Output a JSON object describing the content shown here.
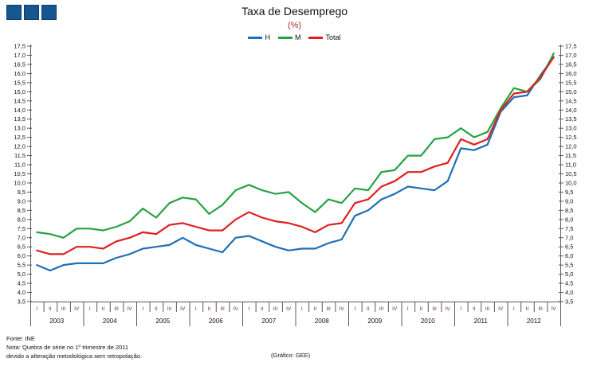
{
  "header": {
    "title": "Taxa de Desemprego",
    "subtitle": "(%)"
  },
  "logo": {
    "squares": 3,
    "color": "#18568F"
  },
  "footer": {
    "source": "Fonte: INE",
    "note_line1": "Nota: Quebra de série no 1º trimestre de 2011",
    "note_line2": "devido a alteração metodológica sem retropolação.",
    "credit": "(Gráfico: GEE)"
  },
  "chart_data": {
    "type": "line",
    "title": "Taxa de Desemprego",
    "subtitle": "(%)",
    "ylim": [
      3.5,
      17.5
    ],
    "ytick_step": 0.5,
    "grid": false,
    "legend_position": "top-center",
    "axis_color": "#595959",
    "quarter_label_color": "#69295E",
    "year_label_color": "#111111",
    "years": [
      2003,
      2004,
      2005,
      2006,
      2007,
      2008,
      2009,
      2010,
      2011,
      2012
    ],
    "quarter_labels": [
      "I",
      "II",
      "III",
      "IV"
    ],
    "x_unit": "quarters (I-IV) per year, 2003-2012",
    "series": [
      {
        "name": "H",
        "color": "#1F6FB5",
        "values": [
          5.5,
          5.2,
          5.5,
          5.6,
          5.6,
          5.6,
          5.9,
          6.1,
          6.4,
          6.5,
          6.6,
          7.0,
          6.6,
          6.4,
          6.2,
          7.0,
          7.1,
          6.8,
          6.5,
          6.3,
          6.4,
          6.4,
          6.7,
          6.9,
          8.2,
          8.5,
          9.1,
          9.4,
          9.8,
          9.7,
          9.6,
          10.1,
          11.9,
          11.8,
          12.1,
          13.9,
          14.7,
          14.8,
          15.9,
          16.9
        ]
      },
      {
        "name": "M",
        "color": "#27A243",
        "values": [
          7.3,
          7.2,
          7.0,
          7.5,
          7.5,
          7.4,
          7.6,
          7.9,
          8.6,
          8.1,
          8.9,
          9.2,
          9.1,
          8.3,
          8.8,
          9.6,
          9.9,
          9.6,
          9.4,
          9.5,
          8.9,
          8.4,
          9.1,
          8.9,
          9.7,
          9.6,
          10.6,
          10.7,
          11.5,
          11.5,
          12.4,
          12.5,
          13.0,
          12.5,
          12.8,
          14.1,
          15.2,
          15.0,
          15.7,
          17.1
        ]
      },
      {
        "name": "Total",
        "color": "#E01F1F",
        "values": [
          6.3,
          6.1,
          6.1,
          6.5,
          6.5,
          6.4,
          6.8,
          7.0,
          7.3,
          7.2,
          7.7,
          7.8,
          7.6,
          7.4,
          7.4,
          8.0,
          8.4,
          8.1,
          7.9,
          7.8,
          7.6,
          7.3,
          7.7,
          7.8,
          8.9,
          9.1,
          9.8,
          10.1,
          10.6,
          10.6,
          10.9,
          11.1,
          12.4,
          12.1,
          12.4,
          14.0,
          14.9,
          15.0,
          15.8,
          16.9
        ]
      }
    ]
  }
}
